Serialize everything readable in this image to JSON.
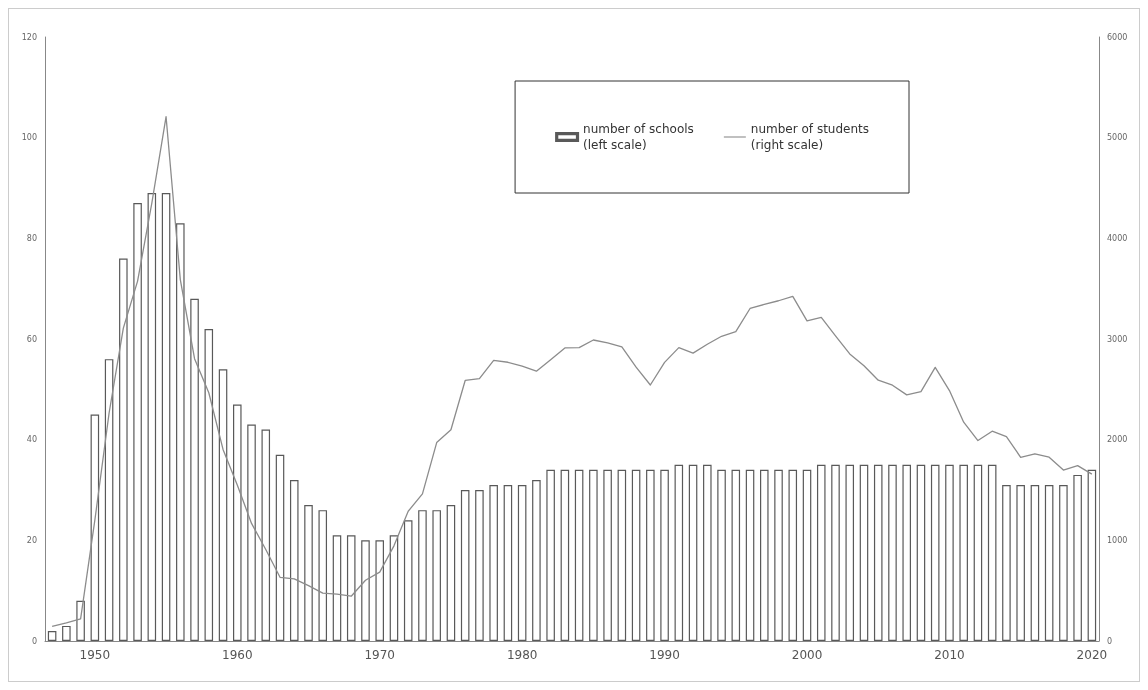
{
  "chart_data": {
    "type": "bar",
    "categories": [
      null,
      null,
      null,
      "1950",
      null,
      null,
      null,
      null,
      null,
      null,
      null,
      null,
      null,
      "1960",
      null,
      null,
      null,
      null,
      null,
      null,
      null,
      null,
      null,
      "1970",
      null,
      null,
      null,
      null,
      null,
      null,
      null,
      null,
      null,
      "1980",
      null,
      null,
      null,
      null,
      null,
      null,
      null,
      null,
      null,
      "1990",
      null,
      null,
      null,
      null,
      null,
      null,
      null,
      null,
      null,
      "2000",
      null,
      null,
      null,
      null,
      null,
      null,
      null,
      null,
      null,
      "2010",
      null,
      null,
      null,
      null,
      null,
      null,
      null,
      null,
      null,
      "2020"
    ],
    "series": [
      {
        "name": "number of schools\n(left scale)",
        "color": "#595959",
        "values": [
          2,
          3,
          8,
          45,
          56,
          76,
          87,
          89,
          89,
          83,
          68,
          62,
          54,
          47,
          43,
          42,
          37,
          32,
          27,
          26,
          21,
          21,
          20,
          20,
          21,
          24,
          26,
          26,
          27,
          30,
          30,
          31,
          31,
          31,
          32,
          34,
          34,
          34,
          34,
          34,
          34,
          34,
          34,
          34,
          35,
          35,
          35,
          34,
          34,
          34,
          34,
          34,
          34,
          34,
          35,
          35,
          35,
          35,
          35,
          35,
          35,
          35,
          35,
          35,
          35,
          35,
          35,
          31,
          31,
          31,
          31,
          31,
          33,
          34
        ]
      },
      {
        "name": "number of students\n(right scale)",
        "type": "line",
        "axis": "y2",
        "color": "#8c8c8c",
        "values": [
          145,
          179,
          219,
          1200,
          2265,
          3108,
          3575,
          4350,
          5208,
          3590,
          2804,
          2466,
          1903,
          1549,
          1168,
          909,
          633,
          617,
          550,
          475,
          466,
          445,
          603,
          684,
          945,
          1289,
          1461,
          1971,
          2098,
          2588,
          2606,
          2787,
          2769,
          2730,
          2680,
          2795,
          2911,
          2915,
          2990,
          2962,
          2922,
          2720,
          2543,
          2768,
          2914,
          2860,
          2948,
          3027,
          3073,
          3303,
          3344,
          3380,
          3424,
          3180,
          3215,
          3031,
          2852,
          2735,
          2591,
          2541,
          2445,
          2478,
          2718,
          2488,
          2174,
          1991,
          2084,
          2031,
          1825,
          1860,
          1826,
          1698,
          1742,
          1658
        ]
      }
    ],
    "ylim": [
      0,
      120
    ],
    "yticks": [
      0,
      20,
      40,
      60,
      80,
      100,
      120
    ],
    "y2lim": [
      0,
      6000
    ],
    "y2ticks": [
      0,
      1000,
      2000,
      3000,
      4000,
      5000,
      6000
    ],
    "legend": "top right",
    "grid": false,
    "marker": "none"
  }
}
